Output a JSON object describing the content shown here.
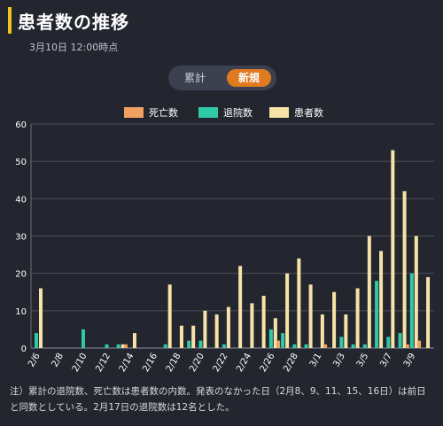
{
  "header": {
    "title": "患者数の推移",
    "timestamp": "3月10日 12:00時点"
  },
  "toggle": {
    "cumulative_label": "累計",
    "new_label": "新規",
    "selected": "新規"
  },
  "chart_data": {
    "type": "bar",
    "categories": [
      "2/6",
      "2/7",
      "2/8",
      "2/9",
      "2/10",
      "2/11",
      "2/12",
      "2/13",
      "2/14",
      "2/15",
      "2/16",
      "2/17",
      "2/18",
      "2/19",
      "2/20",
      "2/21",
      "2/22",
      "2/23",
      "2/24",
      "2/25",
      "2/26",
      "2/27",
      "2/28",
      "2/29",
      "3/1",
      "3/2",
      "3/3",
      "3/4",
      "3/5",
      "3/6",
      "3/7",
      "3/8",
      "3/9",
      "3/10"
    ],
    "tick_labels": [
      "2/6",
      "2/8",
      "2/10",
      "2/12",
      "2/14",
      "2/16",
      "2/18",
      "2/20",
      "2/22",
      "2/24",
      "2/26",
      "2/28",
      "3/1",
      "3/3",
      "3/5",
      "3/7",
      "3/9"
    ],
    "series": [
      {
        "name": "死亡数",
        "color": "#f0a060",
        "values": [
          0,
          0,
          0,
          0,
          0,
          0,
          0,
          0,
          1,
          0,
          0,
          0,
          0,
          0,
          0,
          0,
          0,
          0,
          0,
          0,
          0,
          2,
          0,
          0,
          0,
          1,
          0,
          0,
          0,
          0,
          0,
          0,
          1,
          2
        ]
      },
      {
        "name": "退院数",
        "color": "#2fc9a8",
        "values": [
          4,
          0,
          0,
          0,
          5,
          0,
          1,
          1,
          0,
          0,
          0,
          1,
          0,
          2,
          2,
          0,
          1,
          0,
          0,
          0,
          5,
          4,
          1,
          1,
          0,
          0,
          3,
          1,
          1,
          18,
          3,
          4,
          20,
          0
        ]
      },
      {
        "name": "患者数",
        "color": "#f5e3a8",
        "values": [
          16,
          0,
          0,
          0,
          0,
          0,
          0,
          1,
          4,
          0,
          0,
          17,
          6,
          6,
          10,
          9,
          11,
          22,
          12,
          14,
          8,
          20,
          24,
          17,
          9,
          15,
          9,
          16,
          30,
          26,
          53,
          42,
          30,
          19
        ]
      }
    ],
    "ylim": [
      0,
      60
    ],
    "yticks": [
      0,
      10,
      20,
      30,
      40,
      50,
      60
    ],
    "grid": true,
    "legend_position": "top"
  },
  "note": "注）累計の退院数、死亡数は患者数の内数。発表のなかった日（2月8、9、11、15、16日）は前日と同数としている。2月17日の退院数は12名とした。"
}
